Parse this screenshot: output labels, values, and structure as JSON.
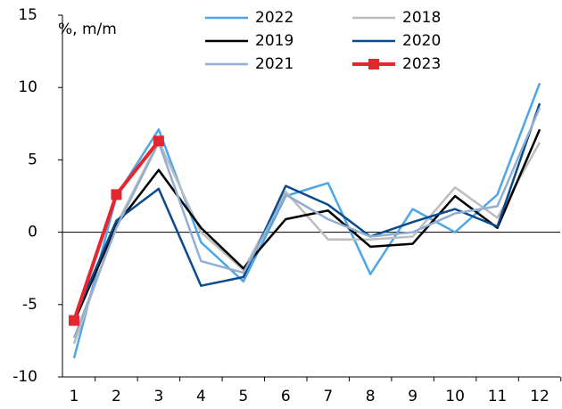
{
  "chart_data": {
    "type": "line",
    "y_axis_label": "%, m/m",
    "categories": [
      "1",
      "2",
      "3",
      "4",
      "5",
      "6",
      "7",
      "8",
      "9",
      "10",
      "11",
      "12"
    ],
    "series": [
      {
        "name": "2022",
        "color": "#4da6e8",
        "values": [
          -8.7,
          2.5,
          7.1,
          -0.7,
          -3.4,
          2.5,
          3.4,
          -2.9,
          1.6,
          0.0,
          2.6,
          10.3
        ]
      },
      {
        "name": "2018",
        "color": "#bdbdbd",
        "values": [
          -7.7,
          0.5,
          6.3,
          0.0,
          -2.6,
          2.8,
          -0.5,
          -0.5,
          -0.3,
          3.1,
          1.0,
          6.2
        ]
      },
      {
        "name": "2019",
        "color": "#000000",
        "values": [
          -6.2,
          0.5,
          4.3,
          0.3,
          -2.5,
          0.9,
          1.5,
          -1.0,
          -0.8,
          2.5,
          0.3,
          7.1
        ]
      },
      {
        "name": "2020",
        "color": "#0b4a8b",
        "values": [
          -6.0,
          0.8,
          3.0,
          -3.7,
          -3.1,
          3.2,
          1.9,
          -0.3,
          0.7,
          1.6,
          0.4,
          8.9
        ]
      },
      {
        "name": "2021",
        "color": "#93aed0",
        "values": [
          -7.3,
          0.3,
          6.2,
          -2.0,
          -2.8,
          2.6,
          0.9,
          -0.3,
          0.0,
          1.3,
          1.8,
          8.6
        ]
      },
      {
        "name": "2023",
        "color": "#e3262f",
        "marker": "square",
        "values": [
          -6.1,
          2.6,
          6.3,
          null,
          null,
          null,
          null,
          null,
          null,
          null,
          null,
          null
        ]
      }
    ],
    "ylim": [
      -10,
      15
    ],
    "yticks": [
      -10,
      -5,
      0,
      5,
      10,
      15
    ]
  }
}
